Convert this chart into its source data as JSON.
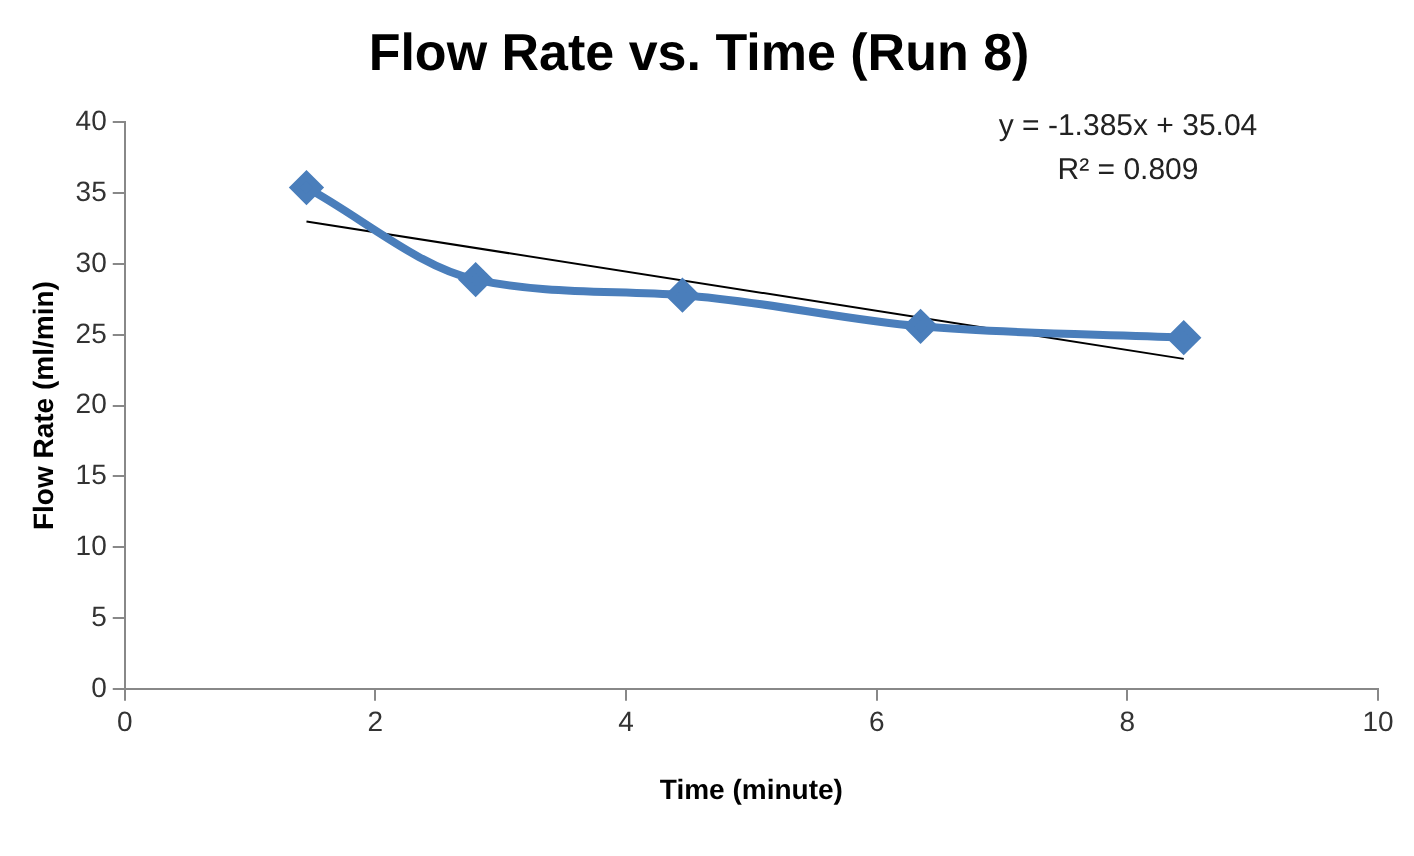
{
  "chart_data": {
    "type": "line",
    "title": "Flow Rate vs. Time (Run 8)",
    "xlabel": "Time (minute)",
    "ylabel": "Flow Rate (ml/min)",
    "x": [
      1.45,
      2.8,
      4.45,
      6.35,
      8.45
    ],
    "series": [
      {
        "color": "#4a7ebb",
        "values": [
          35.4,
          28.9,
          27.8,
          25.6,
          24.8
        ],
        "marker": "diamond"
      },
      {
        "type": "line",
        "color": "#000000",
        "x": [
          1.45,
          8.45
        ],
        "values": [
          33.0,
          23.3
        ],
        "marker": "none"
      }
    ],
    "xlim": [
      0,
      10
    ],
    "xticks": [
      0,
      2,
      4,
      6,
      8,
      10
    ],
    "ylim": [
      0,
      40
    ],
    "yticks": [
      0,
      5,
      10,
      15,
      20,
      25,
      30,
      35,
      40
    ],
    "grid": false,
    "legend": false,
    "annotations": [
      "y = -1.385x + 35.04",
      "R² = 0.809"
    ]
  }
}
